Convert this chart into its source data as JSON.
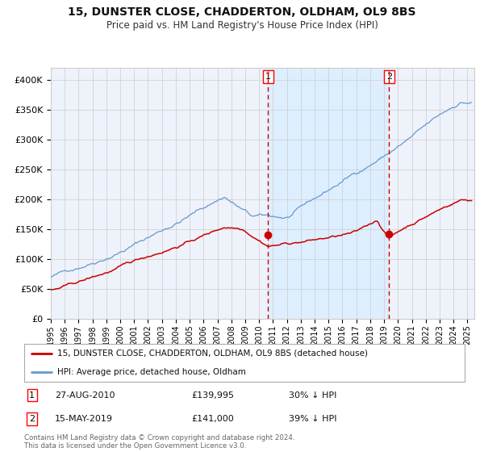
{
  "title": "15, DUNSTER CLOSE, CHADDERTON, OLDHAM, OL9 8BS",
  "subtitle": "Price paid vs. HM Land Registry's House Price Index (HPI)",
  "legend_line1": "15, DUNSTER CLOSE, CHADDERTON, OLDHAM, OL9 8BS (detached house)",
  "legend_line2": "HPI: Average price, detached house, Oldham",
  "annotation1_date": "27-AUG-2010",
  "annotation1_price": "£139,995",
  "annotation1_hpi": "30% ↓ HPI",
  "annotation2_date": "15-MAY-2019",
  "annotation2_price": "£141,000",
  "annotation2_hpi": "39% ↓ HPI",
  "sale1_year": 2010.65,
  "sale1_price": 139995,
  "sale2_year": 2019.37,
  "sale2_price": 141000,
  "red_color": "#cc0000",
  "blue_color": "#6699cc",
  "shade_color": "#ddeeff",
  "bg_color": "#eef2fa",
  "grid_color": "#cccccc",
  "footer_text": "Contains HM Land Registry data © Crown copyright and database right 2024.\nThis data is licensed under the Open Government Licence v3.0.",
  "ylim_min": 0,
  "ylim_max": 420000,
  "xmin": 1995,
  "xmax": 2025.5
}
